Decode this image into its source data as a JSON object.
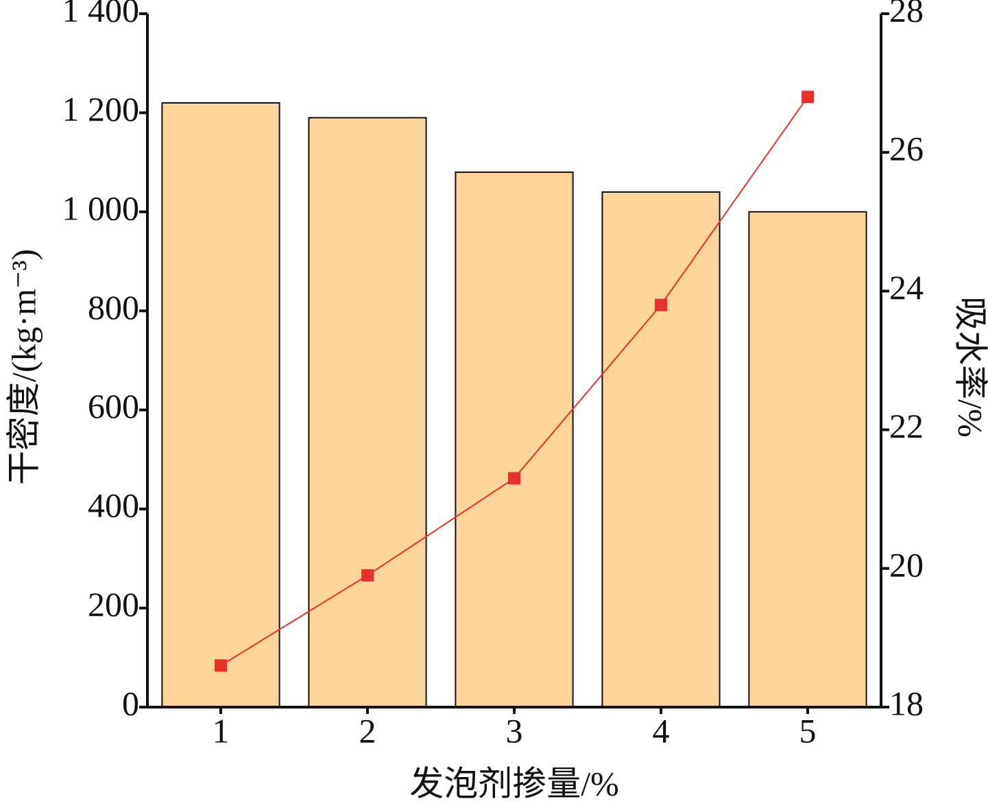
{
  "chart_data": {
    "type": "bar",
    "xlabel": "发泡剂掺量/%",
    "ylabel": "干密度/(kg·m⁻³)",
    "y2label": "吸水率/%",
    "categories": [
      "1",
      "2",
      "3",
      "4",
      "5"
    ],
    "series": [
      {
        "type": "bar",
        "color": "#fdd49a",
        "values": [
          1220,
          1190,
          1080,
          1040,
          1000
        ]
      },
      {
        "type": "line",
        "axis": "y2",
        "color": "#e8312a",
        "values": [
          18.6,
          19.9,
          21.3,
          23.8,
          26.8
        ]
      }
    ],
    "ylim": [
      0,
      1400
    ],
    "yticks": [
      0,
      200,
      400,
      600,
      800,
      {
        "value": 1000,
        "label": "1 000"
      },
      {
        "value": 1200,
        "label": "1 200"
      },
      {
        "value": 1400,
        "label": "1 400"
      }
    ],
    "y2lim": [
      18,
      28
    ],
    "y2ticks": [
      18,
      20,
      22,
      24,
      26,
      28
    ]
  }
}
